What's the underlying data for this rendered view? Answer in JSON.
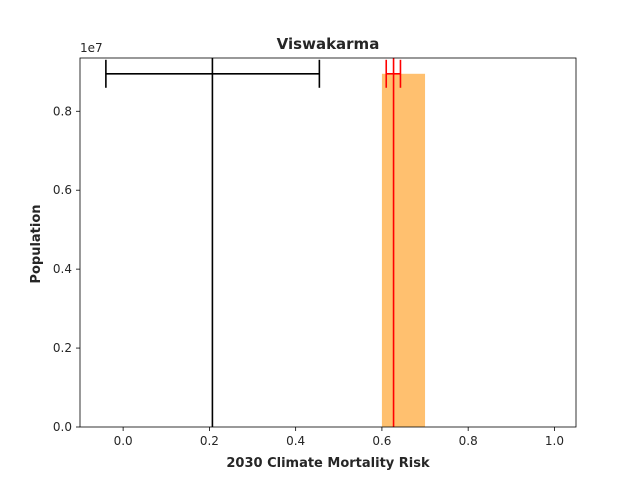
{
  "chart_data": {
    "type": "bar",
    "title": "Viswakarma",
    "xlabel": "2030 Climate Mortality Risk",
    "ylabel": "Population",
    "y_multiplier_label": "1e7",
    "xlim": [
      -0.1,
      1.05
    ],
    "ylim": [
      0,
      9.35
    ],
    "x_ticks": [
      0.0,
      0.2,
      0.4,
      0.6,
      0.8,
      1.0
    ],
    "x_tick_labels": [
      "0.0",
      "0.2",
      "0.4",
      "0.6",
      "0.8",
      "1.0"
    ],
    "y_ticks": [
      0.0,
      0.2,
      0.4,
      0.6,
      0.8
    ],
    "y_tick_labels": [
      "0.0",
      "0.2",
      "0.4",
      "0.6",
      "0.8"
    ],
    "y_tick_values_scaled": [
      0,
      2,
      4,
      6,
      8
    ],
    "grid": false,
    "bars": [
      {
        "x_start": 0.6,
        "x_end": 0.7,
        "value": 8.95,
        "color": "#ffc06f"
      }
    ],
    "reference_lines": [
      {
        "x": 0.207,
        "color": "#000000",
        "error_low": -0.04,
        "error_high": 0.455,
        "error_y": 8.95
      },
      {
        "x": 0.627,
        "color": "#ff0000",
        "error_low": 0.61,
        "error_high": 0.643,
        "error_y": 8.95
      }
    ]
  }
}
